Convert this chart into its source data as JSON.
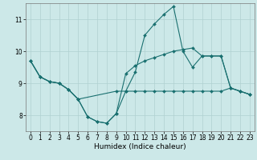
{
  "xlabel": "Humidex (Indice chaleur)",
  "bg_color": "#cce8e8",
  "line_color": "#1a7070",
  "xlim": [
    -0.5,
    23.5
  ],
  "ylim": [
    7.5,
    11.5
  ],
  "yticks": [
    8,
    9,
    10,
    11
  ],
  "xticks": [
    0,
    1,
    2,
    3,
    4,
    5,
    6,
    7,
    8,
    9,
    10,
    11,
    12,
    13,
    14,
    15,
    16,
    17,
    18,
    19,
    20,
    21,
    22,
    23
  ],
  "grid_color": "#b0d0d0",
  "tick_fontsize": 5.5,
  "label_fontsize": 6.5,
  "markersize": 2.0,
  "series1_x": [
    0,
    1,
    2,
    3,
    4,
    5,
    6,
    7,
    8,
    9,
    10,
    11,
    12,
    13,
    14,
    15,
    16,
    17,
    18,
    19,
    20,
    21,
    22,
    23
  ],
  "series1_y": [
    9.7,
    9.2,
    9.05,
    9.0,
    8.8,
    8.5,
    7.95,
    7.8,
    7.75,
    8.05,
    9.3,
    9.55,
    9.7,
    9.8,
    9.9,
    10.0,
    10.05,
    10.1,
    9.85,
    9.85,
    9.85,
    8.85,
    8.75,
    8.65
  ],
  "series2_x": [
    0,
    1,
    2,
    3,
    4,
    5,
    6,
    7,
    8,
    9,
    10,
    11,
    12,
    13,
    14,
    15,
    16,
    17,
    18,
    19,
    20,
    21,
    22,
    23
  ],
  "series2_y": [
    9.7,
    9.2,
    9.05,
    9.0,
    8.8,
    8.5,
    7.95,
    7.8,
    7.75,
    8.05,
    8.75,
    9.35,
    10.5,
    10.85,
    11.15,
    11.4,
    10.0,
    9.5,
    9.85,
    9.85,
    9.85,
    8.85,
    8.75,
    8.65
  ],
  "series3_x": [
    0,
    1,
    2,
    3,
    4,
    5,
    9,
    10,
    11,
    12,
    13,
    14,
    15,
    16,
    17,
    18,
    19,
    20,
    21,
    22,
    23
  ],
  "series3_y": [
    9.7,
    9.2,
    9.05,
    9.0,
    8.8,
    8.5,
    8.75,
    8.75,
    8.75,
    8.75,
    8.75,
    8.75,
    8.75,
    8.75,
    8.75,
    8.75,
    8.75,
    8.75,
    8.85,
    8.75,
    8.65
  ]
}
